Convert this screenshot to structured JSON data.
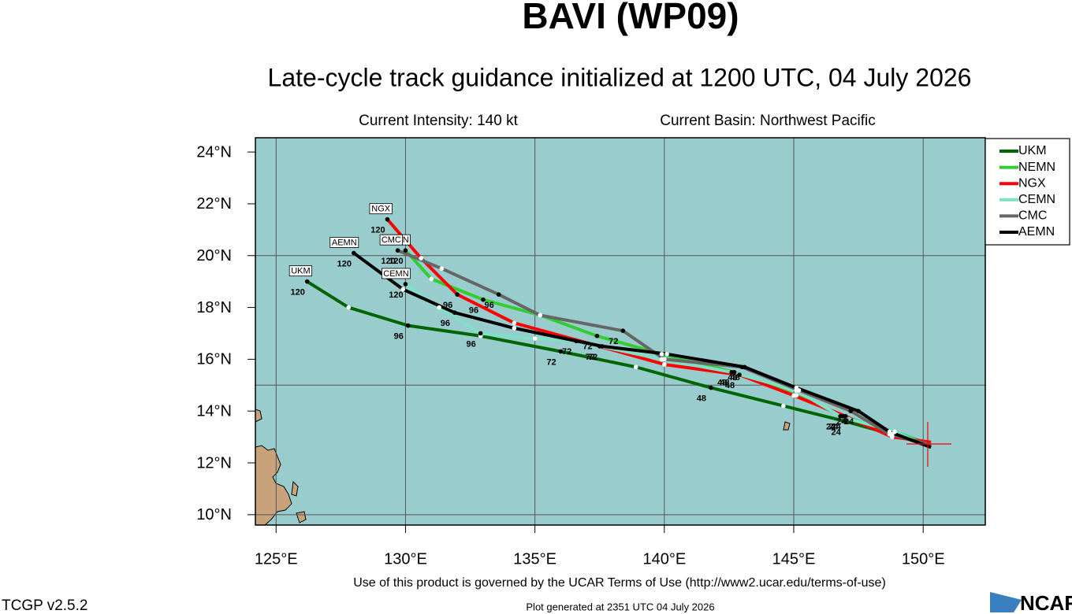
{
  "chart_data": {
    "type": "track",
    "title": "BAVI (WP09)",
    "subtitle": "Late-cycle track guidance initialized at 1200 UTC, 04 July 2026",
    "intensity": "Current Intensity: 140 kt",
    "basin": "Current Basin: Northwest Pacific",
    "xlim": [
      124.2,
      152.4
    ],
    "ylim": [
      9.6,
      24.55
    ],
    "xticks": [
      {
        "value": 125,
        "label": "125°E"
      },
      {
        "value": 130,
        "label": "130°E"
      },
      {
        "value": 135,
        "label": "135°E"
      },
      {
        "value": 140,
        "label": "140°E"
      },
      {
        "value": 145,
        "label": "145°E"
      },
      {
        "value": 150,
        "label": "150°E"
      }
    ],
    "yticks": [
      {
        "value": 10,
        "label": "10°N"
      },
      {
        "value": 12,
        "label": "12°N"
      },
      {
        "value": 14,
        "label": "14°N"
      },
      {
        "value": 16,
        "label": "16°N"
      },
      {
        "value": 18,
        "label": "18°N"
      },
      {
        "value": 20,
        "label": "20°N"
      },
      {
        "value": 22,
        "label": "22°N"
      },
      {
        "value": 24,
        "label": "24°N"
      }
    ],
    "ygrid": [
      10,
      15,
      20
    ],
    "grid": true,
    "legend": "right",
    "series": [
      {
        "name": "UKM",
        "color": "#006400",
        "lon": [
          150.3,
          148.8,
          147.0,
          144.6,
          141.8,
          138.9,
          136.0,
          132.9,
          130.1,
          127.8,
          126.2
        ],
        "lat": [
          12.65,
          13.1,
          13.6,
          14.2,
          14.9,
          15.7,
          16.3,
          16.9,
          17.3,
          18.0,
          19.0
        ],
        "hour_labels": [
          null,
          null,
          24,
          null,
          48,
          null,
          72,
          null,
          96,
          null,
          120
        ]
      },
      {
        "name": "NEMN",
        "color": "#33cc33",
        "lon": [
          150.3,
          148.9,
          146.9,
          145.1,
          142.7,
          139.9,
          137.4,
          135.2,
          133.0,
          131.0,
          130.0
        ],
        "lat": [
          12.7,
          13.2,
          13.8,
          14.6,
          15.5,
          16.2,
          16.9,
          17.7,
          18.3,
          19.1,
          20.2
        ],
        "hour_labels": [
          null,
          null,
          24,
          null,
          48,
          null,
          72,
          null,
          96,
          null,
          120
        ]
      },
      {
        "name": "NGX",
        "color": "#ff0000",
        "lon": [
          150.3,
          148.8,
          147.0,
          145.0,
          142.9,
          140.0,
          137.5,
          134.2,
          132.0,
          130.6,
          129.3
        ],
        "lat": [
          12.8,
          13.0,
          13.8,
          14.6,
          15.4,
          15.8,
          16.5,
          17.4,
          18.5,
          19.9,
          21.4
        ],
        "hour_labels": [
          null,
          null,
          24,
          null,
          48,
          null,
          72,
          null,
          96,
          null,
          120
        ]
      },
      {
        "name": "CEMN",
        "color": "#7fe0c8",
        "lon": [
          150.3,
          148.9,
          146.8,
          145.1,
          142.6,
          139.9,
          136.6,
          135.0,
          132.9,
          131.3,
          130.0
        ],
        "lat": [
          12.6,
          13.2,
          13.8,
          14.8,
          15.5,
          16.0,
          16.7,
          16.8,
          17.0,
          18.0,
          18.9
        ],
        "hour_labels": [
          null,
          null,
          24,
          null,
          48,
          null,
          72,
          null,
          96,
          null,
          120
        ]
      },
      {
        "name": "CMC",
        "color": "#666666",
        "lon": [
          150.3,
          148.7,
          147.2,
          145.2,
          143.0,
          140.0,
          138.4,
          135.2,
          133.6,
          131.4,
          129.7
        ],
        "lat": [
          12.7,
          13.1,
          14.0,
          14.8,
          15.7,
          16.0,
          17.1,
          17.7,
          18.5,
          19.5,
          20.2
        ],
        "hour_labels": [
          null,
          null,
          24,
          null,
          48,
          null,
          72,
          null,
          96,
          null,
          120
        ]
      },
      {
        "name": "AEMN",
        "color": "#000000",
        "lon": [
          150.3,
          148.7,
          147.5,
          145.1,
          143.1,
          140.1,
          137.6,
          134.2,
          131.9,
          129.9,
          128.0
        ],
        "lat": [
          12.6,
          13.2,
          14.0,
          14.9,
          15.7,
          16.2,
          16.5,
          17.2,
          17.8,
          18.7,
          20.1
        ],
        "hour_labels": [
          null,
          null,
          24,
          null,
          48,
          null,
          72,
          null,
          96,
          null,
          120
        ]
      }
    ]
  },
  "footer": {
    "terms": "Use of this product is governed by the UCAR Terms of Use (http://www2.ucar.edu/terms-of-use)",
    "version": "TCGP v2.5.2",
    "generated": "Plot generated at 2351 UTC  04 July 2026",
    "logo": "NCAR"
  }
}
